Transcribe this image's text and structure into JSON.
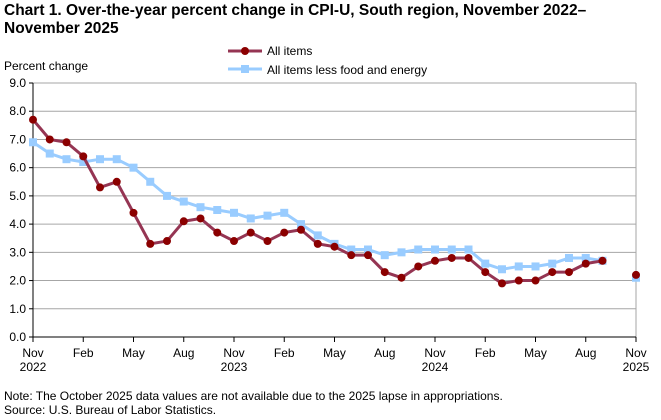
{
  "chart_data": {
    "type": "line",
    "title": "Chart 1. Over-the-year percent change in CPI-U, South region, November 2022–November 2025",
    "ylabel": "Percent change",
    "ylim": [
      0,
      9
    ],
    "yticks": [
      "0.0",
      "1.0",
      "2.0",
      "3.0",
      "4.0",
      "5.0",
      "6.0",
      "7.0",
      "8.0",
      "9.0"
    ],
    "xticks": [
      {
        "label": "Nov",
        "sub": "2022",
        "index": 0
      },
      {
        "label": "Feb",
        "sub": "",
        "index": 3
      },
      {
        "label": "May",
        "sub": "",
        "index": 6
      },
      {
        "label": "Aug",
        "sub": "",
        "index": 9
      },
      {
        "label": "Nov",
        "sub": "2023",
        "index": 12
      },
      {
        "label": "Feb",
        "sub": "",
        "index": 15
      },
      {
        "label": "May",
        "sub": "",
        "index": 18
      },
      {
        "label": "Aug",
        "sub": "",
        "index": 21
      },
      {
        "label": "Nov",
        "sub": "2024",
        "index": 24
      },
      {
        "label": "Feb",
        "sub": "",
        "index": 27
      },
      {
        "label": "May",
        "sub": "",
        "index": 30
      },
      {
        "label": "Aug",
        "sub": "",
        "index": 33
      },
      {
        "label": "Nov",
        "sub": "2025",
        "index": 36
      }
    ],
    "grid": true,
    "legend_placement": "top-center",
    "series": [
      {
        "name": "All items",
        "color": "#8B0000",
        "line_color": "#953553",
        "marker": "circle",
        "values": [
          7.7,
          7.0,
          6.9,
          6.4,
          5.3,
          5.5,
          4.4,
          3.3,
          3.4,
          4.1,
          4.2,
          3.7,
          3.4,
          3.7,
          3.4,
          3.7,
          3.8,
          3.3,
          3.2,
          2.9,
          2.9,
          2.3,
          2.1,
          2.5,
          2.7,
          2.8,
          2.8,
          2.3,
          1.9,
          2.0,
          2.0,
          2.3,
          2.3,
          2.6,
          2.7,
          null,
          2.2
        ]
      },
      {
        "name": "All items less food and energy",
        "color": "#99CCFF",
        "line_color": "#99CCFF",
        "marker": "square",
        "values": [
          6.9,
          6.5,
          6.3,
          6.2,
          6.3,
          6.3,
          6.0,
          5.5,
          5.0,
          4.8,
          4.6,
          4.5,
          4.4,
          4.2,
          4.3,
          4.4,
          4.0,
          3.6,
          3.3,
          3.1,
          3.1,
          2.9,
          3.0,
          3.1,
          3.1,
          3.1,
          3.1,
          2.6,
          2.4,
          2.5,
          2.5,
          2.6,
          2.8,
          2.8,
          2.7,
          null,
          2.1
        ]
      }
    ]
  },
  "notes": {
    "note": "Note: The October 2025 data values  are not available  due to the 2025  lapse in appropriations.",
    "source": "Source: U.S. Bureau  of Labor Statistics."
  }
}
